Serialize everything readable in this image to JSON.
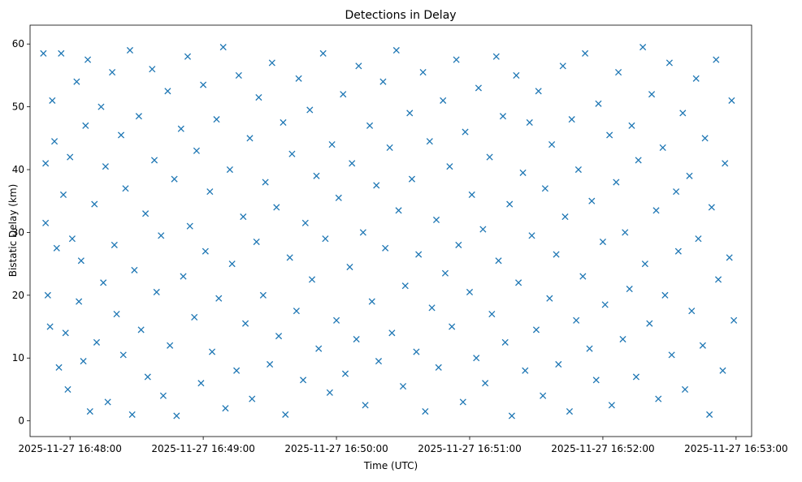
{
  "chart_data": {
    "type": "scatter",
    "title": "Detections in Delay",
    "xlabel": "Time (UTC)",
    "ylabel": "Bistatic Delay (km)",
    "x_ticks": [
      "2025-11-27 16:48:00",
      "2025-11-27 16:49:00",
      "2025-11-27 16:50:00",
      "2025-11-27 16:51:00",
      "2025-11-27 16:52:00",
      "2025-11-27 16:53:00"
    ],
    "y_ticks": [
      0,
      10,
      20,
      30,
      40,
      50,
      60
    ],
    "xlim": [
      "2025-11-27 16:47:42",
      "2025-11-27 16:53:07"
    ],
    "ylim": [
      -2.5,
      63
    ],
    "marker": "x",
    "marker_color": "#1f77b4",
    "grid": false,
    "x_range": [
      "2025-11-27 16:47:47",
      "2025-11-27 16:52:59"
    ],
    "y_range": [
      0.5,
      60
    ],
    "series": [
      {
        "name": "",
        "points": [
          [
            "2025-11-27 16:47:48",
            58.5
          ],
          [
            "2025-11-27 16:47:49",
            41.0
          ],
          [
            "2025-11-27 16:47:49",
            31.5
          ],
          [
            "2025-11-27 16:47:50",
            20.0
          ],
          [
            "2025-11-27 16:47:51",
            15.0
          ],
          [
            "2025-11-27 16:47:52",
            51.0
          ],
          [
            "2025-11-27 16:47:53",
            44.5
          ],
          [
            "2025-11-27 16:47:54",
            27.5
          ],
          [
            "2025-11-27 16:47:55",
            8.5
          ],
          [
            "2025-11-27 16:47:56",
            58.5
          ],
          [
            "2025-11-27 16:47:57",
            36.0
          ],
          [
            "2025-11-27 16:47:58",
            14.0
          ],
          [
            "2025-11-27 16:47:59",
            5.0
          ],
          [
            "2025-11-27 16:48:00",
            42.0
          ],
          [
            "2025-11-27 16:48:01",
            29.0
          ],
          [
            "2025-11-27 16:48:03",
            54.0
          ],
          [
            "2025-11-27 16:48:04",
            19.0
          ],
          [
            "2025-11-27 16:48:05",
            25.5
          ],
          [
            "2025-11-27 16:48:06",
            9.5
          ],
          [
            "2025-11-27 16:48:07",
            47.0
          ],
          [
            "2025-11-27 16:48:08",
            57.5
          ],
          [
            "2025-11-27 16:48:09",
            1.5
          ],
          [
            "2025-11-27 16:48:11",
            34.5
          ],
          [
            "2025-11-27 16:48:12",
            12.5
          ],
          [
            "2025-11-27 16:48:14",
            50.0
          ],
          [
            "2025-11-27 16:48:15",
            22.0
          ],
          [
            "2025-11-27 16:48:16",
            40.5
          ],
          [
            "2025-11-27 16:48:17",
            3.0
          ],
          [
            "2025-11-27 16:48:19",
            55.5
          ],
          [
            "2025-11-27 16:48:20",
            28.0
          ],
          [
            "2025-11-27 16:48:21",
            17.0
          ],
          [
            "2025-11-27 16:48:23",
            45.5
          ],
          [
            "2025-11-27 16:48:24",
            10.5
          ],
          [
            "2025-11-27 16:48:25",
            37.0
          ],
          [
            "2025-11-27 16:48:27",
            59.0
          ],
          [
            "2025-11-27 16:48:28",
            1.0
          ],
          [
            "2025-11-27 16:48:29",
            24.0
          ],
          [
            "2025-11-27 16:48:31",
            48.5
          ],
          [
            "2025-11-27 16:48:32",
            14.5
          ],
          [
            "2025-11-27 16:48:34",
            33.0
          ],
          [
            "2025-11-27 16:48:35",
            7.0
          ],
          [
            "2025-11-27 16:48:37",
            56.0
          ],
          [
            "2025-11-27 16:48:38",
            41.5
          ],
          [
            "2025-11-27 16:48:39",
            20.5
          ],
          [
            "2025-11-27 16:48:41",
            29.5
          ],
          [
            "2025-11-27 16:48:42",
            4.0
          ],
          [
            "2025-11-27 16:48:44",
            52.5
          ],
          [
            "2025-11-27 16:48:45",
            12.0
          ],
          [
            "2025-11-27 16:48:47",
            38.5
          ],
          [
            "2025-11-27 16:48:48",
            0.8
          ],
          [
            "2025-11-27 16:48:50",
            46.5
          ],
          [
            "2025-11-27 16:48:51",
            23.0
          ],
          [
            "2025-11-27 16:48:53",
            58.0
          ],
          [
            "2025-11-27 16:48:54",
            31.0
          ],
          [
            "2025-11-27 16:48:56",
            16.5
          ],
          [
            "2025-11-27 16:48:57",
            43.0
          ],
          [
            "2025-11-27 16:48:59",
            6.0
          ],
          [
            "2025-11-27 16:49:00",
            53.5
          ],
          [
            "2025-11-27 16:49:01",
            27.0
          ],
          [
            "2025-11-27 16:49:03",
            36.5
          ],
          [
            "2025-11-27 16:49:04",
            11.0
          ],
          [
            "2025-11-27 16:49:06",
            48.0
          ],
          [
            "2025-11-27 16:49:07",
            19.5
          ],
          [
            "2025-11-27 16:49:09",
            59.5
          ],
          [
            "2025-11-27 16:49:10",
            2.0
          ],
          [
            "2025-11-27 16:49:12",
            40.0
          ],
          [
            "2025-11-27 16:49:13",
            25.0
          ],
          [
            "2025-11-27 16:49:15",
            8.0
          ],
          [
            "2025-11-27 16:49:16",
            55.0
          ],
          [
            "2025-11-27 16:49:18",
            32.5
          ],
          [
            "2025-11-27 16:49:19",
            15.5
          ],
          [
            "2025-11-27 16:49:21",
            45.0
          ],
          [
            "2025-11-27 16:49:22",
            3.5
          ],
          [
            "2025-11-27 16:49:24",
            28.5
          ],
          [
            "2025-11-27 16:49:25",
            51.5
          ],
          [
            "2025-11-27 16:49:27",
            20.0
          ],
          [
            "2025-11-27 16:49:28",
            38.0
          ],
          [
            "2025-11-27 16:49:30",
            9.0
          ],
          [
            "2025-11-27 16:49:31",
            57.0
          ],
          [
            "2025-11-27 16:49:33",
            34.0
          ],
          [
            "2025-11-27 16:49:34",
            13.5
          ],
          [
            "2025-11-27 16:49:36",
            47.5
          ],
          [
            "2025-11-27 16:49:37",
            1.0
          ],
          [
            "2025-11-27 16:49:39",
            26.0
          ],
          [
            "2025-11-27 16:49:40",
            42.5
          ],
          [
            "2025-11-27 16:49:42",
            17.5
          ],
          [
            "2025-11-27 16:49:43",
            54.5
          ],
          [
            "2025-11-27 16:49:45",
            6.5
          ],
          [
            "2025-11-27 16:49:46",
            31.5
          ],
          [
            "2025-11-27 16:49:48",
            49.5
          ],
          [
            "2025-11-27 16:49:49",
            22.5
          ],
          [
            "2025-11-27 16:49:51",
            39.0
          ],
          [
            "2025-11-27 16:49:52",
            11.5
          ],
          [
            "2025-11-27 16:49:54",
            58.5
          ],
          [
            "2025-11-27 16:49:55",
            29.0
          ],
          [
            "2025-11-27 16:49:57",
            4.5
          ],
          [
            "2025-11-27 16:49:58",
            44.0
          ],
          [
            "2025-11-27 16:50:00",
            16.0
          ],
          [
            "2025-11-27 16:50:01",
            35.5
          ],
          [
            "2025-11-27 16:50:03",
            52.0
          ],
          [
            "2025-11-27 16:50:04",
            7.5
          ],
          [
            "2025-11-27 16:50:06",
            24.5
          ],
          [
            "2025-11-27 16:50:07",
            41.0
          ],
          [
            "2025-11-27 16:50:09",
            13.0
          ],
          [
            "2025-11-27 16:50:10",
            56.5
          ],
          [
            "2025-11-27 16:50:12",
            30.0
          ],
          [
            "2025-11-27 16:50:13",
            2.5
          ],
          [
            "2025-11-27 16:50:15",
            47.0
          ],
          [
            "2025-11-27 16:50:16",
            19.0
          ],
          [
            "2025-11-27 16:50:18",
            37.5
          ],
          [
            "2025-11-27 16:50:19",
            9.5
          ],
          [
            "2025-11-27 16:50:21",
            54.0
          ],
          [
            "2025-11-27 16:50:22",
            27.5
          ],
          [
            "2025-11-27 16:50:24",
            43.5
          ],
          [
            "2025-11-27 16:50:25",
            14.0
          ],
          [
            "2025-11-27 16:50:27",
            59.0
          ],
          [
            "2025-11-27 16:50:28",
            33.5
          ],
          [
            "2025-11-27 16:50:30",
            5.5
          ],
          [
            "2025-11-27 16:50:31",
            21.5
          ],
          [
            "2025-11-27 16:50:33",
            49.0
          ],
          [
            "2025-11-27 16:50:34",
            38.5
          ],
          [
            "2025-11-27 16:50:36",
            11.0
          ],
          [
            "2025-11-27 16:50:37",
            26.5
          ],
          [
            "2025-11-27 16:50:39",
            55.5
          ],
          [
            "2025-11-27 16:50:40",
            1.5
          ],
          [
            "2025-11-27 16:50:42",
            44.5
          ],
          [
            "2025-11-27 16:50:43",
            18.0
          ],
          [
            "2025-11-27 16:50:45",
            32.0
          ],
          [
            "2025-11-27 16:50:46",
            8.5
          ],
          [
            "2025-11-27 16:50:48",
            51.0
          ],
          [
            "2025-11-27 16:50:49",
            23.5
          ],
          [
            "2025-11-27 16:50:51",
            40.5
          ],
          [
            "2025-11-27 16:50:52",
            15.0
          ],
          [
            "2025-11-27 16:50:54",
            57.5
          ],
          [
            "2025-11-27 16:50:55",
            28.0
          ],
          [
            "2025-11-27 16:50:57",
            3.0
          ],
          [
            "2025-11-27 16:50:58",
            46.0
          ],
          [
            "2025-11-27 16:51:00",
            20.5
          ],
          [
            "2025-11-27 16:51:01",
            36.0
          ],
          [
            "2025-11-27 16:51:03",
            10.0
          ],
          [
            "2025-11-27 16:51:04",
            53.0
          ],
          [
            "2025-11-27 16:51:06",
            30.5
          ],
          [
            "2025-11-27 16:51:07",
            6.0
          ],
          [
            "2025-11-27 16:51:09",
            42.0
          ],
          [
            "2025-11-27 16:51:10",
            17.0
          ],
          [
            "2025-11-27 16:51:12",
            58.0
          ],
          [
            "2025-11-27 16:51:13",
            25.5
          ],
          [
            "2025-11-27 16:51:15",
            48.5
          ],
          [
            "2025-11-27 16:51:16",
            12.5
          ],
          [
            "2025-11-27 16:51:18",
            34.5
          ],
          [
            "2025-11-27 16:51:19",
            0.8
          ],
          [
            "2025-11-27 16:51:21",
            55.0
          ],
          [
            "2025-11-27 16:51:22",
            22.0
          ],
          [
            "2025-11-27 16:51:24",
            39.5
          ],
          [
            "2025-11-27 16:51:25",
            8.0
          ],
          [
            "2025-11-27 16:51:27",
            47.5
          ],
          [
            "2025-11-27 16:51:28",
            29.5
          ],
          [
            "2025-11-27 16:51:30",
            14.5
          ],
          [
            "2025-11-27 16:51:31",
            52.5
          ],
          [
            "2025-11-27 16:51:33",
            4.0
          ],
          [
            "2025-11-27 16:51:34",
            37.0
          ],
          [
            "2025-11-27 16:51:36",
            19.5
          ],
          [
            "2025-11-27 16:51:37",
            44.0
          ],
          [
            "2025-11-27 16:51:39",
            26.5
          ],
          [
            "2025-11-27 16:51:40",
            9.0
          ],
          [
            "2025-11-27 16:51:42",
            56.5
          ],
          [
            "2025-11-27 16:51:43",
            32.5
          ],
          [
            "2025-11-27 16:51:45",
            1.5
          ],
          [
            "2025-11-27 16:51:46",
            48.0
          ],
          [
            "2025-11-27 16:51:48",
            16.0
          ],
          [
            "2025-11-27 16:51:49",
            40.0
          ],
          [
            "2025-11-27 16:51:51",
            23.0
          ],
          [
            "2025-11-27 16:51:52",
            58.5
          ],
          [
            "2025-11-27 16:51:54",
            11.5
          ],
          [
            "2025-11-27 16:51:55",
            35.0
          ],
          [
            "2025-11-27 16:51:57",
            6.5
          ],
          [
            "2025-11-27 16:51:58",
            50.5
          ],
          [
            "2025-11-27 16:52:00",
            28.5
          ],
          [
            "2025-11-27 16:52:01",
            18.5
          ],
          [
            "2025-11-27 16:52:03",
            45.5
          ],
          [
            "2025-11-27 16:52:04",
            2.5
          ],
          [
            "2025-11-27 16:52:06",
            38.0
          ],
          [
            "2025-11-27 16:52:07",
            55.5
          ],
          [
            "2025-11-27 16:52:09",
            13.0
          ],
          [
            "2025-11-27 16:52:10",
            30.0
          ],
          [
            "2025-11-27 16:52:12",
            21.0
          ],
          [
            "2025-11-27 16:52:13",
            47.0
          ],
          [
            "2025-11-27 16:52:15",
            7.0
          ],
          [
            "2025-11-27 16:52:16",
            41.5
          ],
          [
            "2025-11-27 16:52:18",
            59.5
          ],
          [
            "2025-11-27 16:52:19",
            25.0
          ],
          [
            "2025-11-27 16:52:21",
            15.5
          ],
          [
            "2025-11-27 16:52:22",
            52.0
          ],
          [
            "2025-11-27 16:52:24",
            33.5
          ],
          [
            "2025-11-27 16:52:25",
            3.5
          ],
          [
            "2025-11-27 16:52:27",
            43.5
          ],
          [
            "2025-11-27 16:52:28",
            20.0
          ],
          [
            "2025-11-27 16:52:30",
            57.0
          ],
          [
            "2025-11-27 16:52:31",
            10.5
          ],
          [
            "2025-11-27 16:52:33",
            36.5
          ],
          [
            "2025-11-27 16:52:34",
            27.0
          ],
          [
            "2025-11-27 16:52:36",
            49.0
          ],
          [
            "2025-11-27 16:52:37",
            5.0
          ],
          [
            "2025-11-27 16:52:39",
            39.0
          ],
          [
            "2025-11-27 16:52:40",
            17.5
          ],
          [
            "2025-11-27 16:52:42",
            54.5
          ],
          [
            "2025-11-27 16:52:43",
            29.0
          ],
          [
            "2025-11-27 16:52:45",
            12.0
          ],
          [
            "2025-11-27 16:52:46",
            45.0
          ],
          [
            "2025-11-27 16:52:48",
            1.0
          ],
          [
            "2025-11-27 16:52:49",
            34.0
          ],
          [
            "2025-11-27 16:52:51",
            57.5
          ],
          [
            "2025-11-27 16:52:52",
            22.5
          ],
          [
            "2025-11-27 16:52:54",
            8.0
          ],
          [
            "2025-11-27 16:52:55",
            41.0
          ],
          [
            "2025-11-27 16:52:57",
            26.0
          ],
          [
            "2025-11-27 16:52:58",
            51.0
          ],
          [
            "2025-11-27 16:52:59",
            16.0
          ]
        ]
      }
    ]
  }
}
